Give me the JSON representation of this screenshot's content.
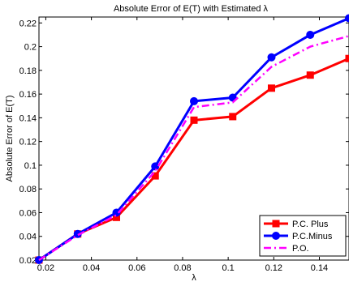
{
  "chart_data": {
    "type": "line",
    "title": "Absolute Error of E(T) with Estimated λ",
    "xlabel": "λ",
    "ylabel": "Absolute Error of E(T)",
    "xlim": [
      0.017,
      0.153
    ],
    "ylim": [
      0.02,
      0.225
    ],
    "x_ticks": [
      "0.02",
      "0.04",
      "0.06",
      "0.08",
      "0.1",
      "0.12",
      "0.14"
    ],
    "y_ticks": [
      "0.02",
      "0.04",
      "0.06",
      "0.08",
      "0.1",
      "0.12",
      "0.14",
      "0.16",
      "0.18",
      "0.2",
      "0.22"
    ],
    "x": [
      0.017,
      0.034,
      0.051,
      0.068,
      0.085,
      0.102,
      0.119,
      0.136,
      0.153
    ],
    "grid": false,
    "legend_position": "bottom-right",
    "series": [
      {
        "name": "P.C. Plus",
        "color": "#ff0000",
        "marker": "square",
        "line": "solid",
        "values": [
          0.02,
          0.042,
          0.056,
          0.091,
          0.138,
          0.141,
          0.165,
          0.176,
          0.19
        ]
      },
      {
        "name": "P.C.Minus",
        "color": "#0000ff",
        "marker": "circle",
        "line": "solid",
        "values": [
          0.02,
          0.042,
          0.06,
          0.099,
          0.154,
          0.157,
          0.191,
          0.21,
          0.224
        ]
      },
      {
        "name": "P.O.",
        "color": "#ff00ff",
        "marker": "none",
        "line": "dashdot",
        "values": [
          0.02,
          0.041,
          0.058,
          0.095,
          0.149,
          0.153,
          0.183,
          0.2,
          0.209
        ]
      }
    ]
  }
}
